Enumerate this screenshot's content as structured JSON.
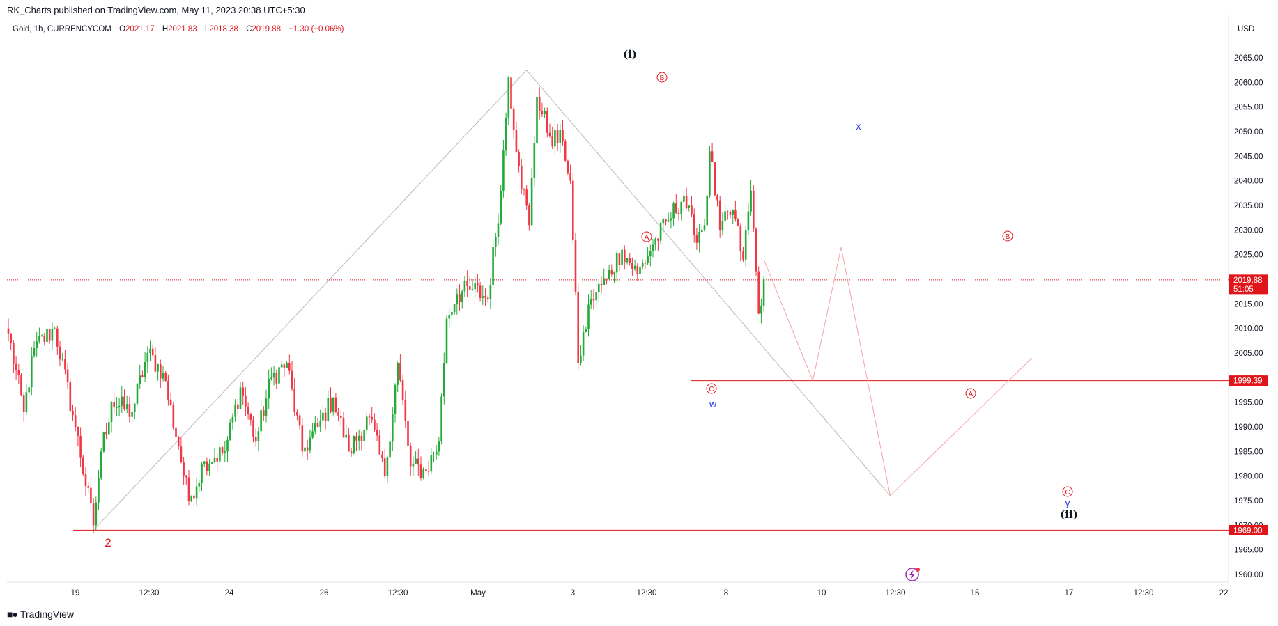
{
  "header": {
    "published": "RK_Charts published on TradingView.com, May 11, 2023 20:38 UTC+5:30"
  },
  "legend": {
    "symbol": "Gold, 1h, CURRENCYCOM",
    "o_label": "O",
    "o_value": "2021.17",
    "h_label": "H",
    "h_value": "2021.83",
    "l_label": "L",
    "l_value": "2018.38",
    "c_label": "C",
    "c_value": "2019.88",
    "change": "−1.30 (−0.06%)"
  },
  "axis": {
    "currency": "USD",
    "y_ticks": [
      "2065.00",
      "2060.00",
      "2055.00",
      "2050.00",
      "2045.00",
      "2040.00",
      "2035.00",
      "2030.00",
      "2025.00",
      "2020.00",
      "2015.00",
      "2010.00",
      "2005.00",
      "2000.00",
      "1995.00",
      "1990.00",
      "1985.00",
      "1980.00",
      "1975.00",
      "1970.00",
      "1965.00",
      "1960.00"
    ],
    "x_ticks": [
      "19",
      "12:30",
      "24",
      "26",
      "12:30",
      "May",
      "3",
      "12:30",
      "8",
      "10",
      "12:30",
      "15",
      "17",
      "12:30",
      "22"
    ]
  },
  "price_tags": {
    "current_price": "2019.88",
    "countdown": "51:05",
    "level_upper": "1999.39",
    "level_lower": "1969.00"
  },
  "wave_labels": {
    "i": "(i)",
    "ii": "(ii)",
    "w": "w",
    "x": "x",
    "y": "y",
    "two": "2",
    "A": "A",
    "B": "B",
    "C": "C"
  },
  "footer": {
    "brand": "TradingView"
  },
  "colors": {
    "up": "#26a69a",
    "up_green": "#22ab36",
    "down": "#f23645",
    "accent_red": "#e0151b",
    "wave_blue": "#2c3ee6",
    "grid_text": "#131722",
    "projection": "#f5a3a9",
    "trendline": "#b8b8b8"
  },
  "chart_data": {
    "type": "candlestick",
    "symbol": "Gold",
    "interval": "1h",
    "ylim": [
      1958,
      2068
    ],
    "current_price": 2019.88,
    "horizontal_levels": [
      1999.39,
      1969.0
    ],
    "anchors": [
      {
        "t": 0,
        "p": 2009
      },
      {
        "t": 6,
        "p": 1993
      },
      {
        "t": 10,
        "p": 2006
      },
      {
        "t": 18,
        "p": 2010
      },
      {
        "t": 26,
        "p": 1990
      },
      {
        "t": 33,
        "p": 1970
      },
      {
        "t": 36,
        "p": 1985
      },
      {
        "t": 40,
        "p": 1995
      },
      {
        "t": 48,
        "p": 1993
      },
      {
        "t": 54,
        "p": 2005
      },
      {
        "t": 60,
        "p": 2001
      },
      {
        "t": 66,
        "p": 1986
      },
      {
        "t": 70,
        "p": 1975
      },
      {
        "t": 76,
        "p": 1983
      },
      {
        "t": 84,
        "p": 1985
      },
      {
        "t": 90,
        "p": 1998
      },
      {
        "t": 96,
        "p": 1987
      },
      {
        "t": 102,
        "p": 2000
      },
      {
        "t": 108,
        "p": 2003
      },
      {
        "t": 114,
        "p": 1985
      },
      {
        "t": 120,
        "p": 1990
      },
      {
        "t": 126,
        "p": 1996
      },
      {
        "t": 132,
        "p": 1985
      },
      {
        "t": 140,
        "p": 1992
      },
      {
        "t": 146,
        "p": 1980
      },
      {
        "t": 151,
        "p": 2003
      },
      {
        "t": 156,
        "p": 1982
      },
      {
        "t": 162,
        "p": 1981
      },
      {
        "t": 167,
        "p": 1987
      },
      {
        "t": 170,
        "p": 2012
      },
      {
        "t": 174,
        "p": 2017
      },
      {
        "t": 180,
        "p": 2018
      },
      {
        "t": 186,
        "p": 2016
      },
      {
        "t": 191,
        "p": 2038
      },
      {
        "t": 194,
        "p": 2061
      },
      {
        "t": 198,
        "p": 2043
      },
      {
        "t": 202,
        "p": 2031
      },
      {
        "t": 205,
        "p": 2057
      },
      {
        "t": 210,
        "p": 2049
      },
      {
        "t": 215,
        "p": 2048
      },
      {
        "t": 218,
        "p": 2040
      },
      {
        "t": 221,
        "p": 2003
      },
      {
        "t": 226,
        "p": 2016
      },
      {
        "t": 232,
        "p": 2020
      },
      {
        "t": 238,
        "p": 2026
      },
      {
        "t": 244,
        "p": 2021
      },
      {
        "t": 250,
        "p": 2027
      },
      {
        "t": 256,
        "p": 2032
      },
      {
        "t": 262,
        "p": 2037
      },
      {
        "t": 266,
        "p": 2029
      },
      {
        "t": 270,
        "p": 2031
      },
      {
        "t": 272,
        "p": 2046
      },
      {
        "t": 276,
        "p": 2030
      },
      {
        "t": 281,
        "p": 2034
      },
      {
        "t": 285,
        "p": 2024
      },
      {
        "t": 288,
        "p": 2038
      },
      {
        "t": 291,
        "p": 2013
      },
      {
        "t": 293,
        "p": 2020
      }
    ],
    "projection_path": [
      {
        "t": 293,
        "p": 2024
      },
      {
        "t": 312,
        "p": 1999.4
      },
      {
        "t": 323,
        "p": 2026.5
      },
      {
        "t": 342,
        "p": 1976
      },
      {
        "t": 397,
        "p": 2004
      }
    ],
    "trendlines": [
      {
        "from": {
          "t": 33,
          "p": 1969.0
        },
        "to": {
          "t": 201,
          "p": 2062.5
        }
      },
      {
        "from": {
          "t": 201,
          "p": 2062.5
        },
        "to": {
          "t": 342,
          "p": 1976
        }
      }
    ]
  }
}
